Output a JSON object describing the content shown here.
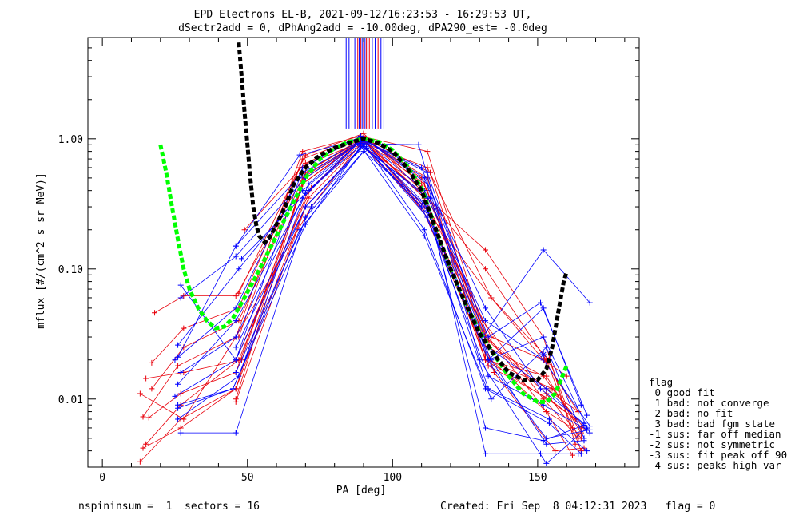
{
  "chart_data": {
    "type": "line",
    "title_line1": "EPD Electrons EL-B, 2021-09-12/16:23:53 - 16:29:53 UT,",
    "title_line2": "dSectr2add = 0, dPhAng2add = -10.00deg, dPA290_est=  -0.0deg",
    "xlabel": "PA [deg]",
    "ylabel": "mflux [#/(cm^2 s sr MeV)]",
    "xlim": [
      -5,
      185
    ],
    "ylim": [
      0.003,
      6.0
    ],
    "yscale": "log",
    "x_ticks": [
      0,
      50,
      100,
      150
    ],
    "x_tick_labels": [
      "0",
      "50",
      "100",
      "150"
    ],
    "y_ticks": [
      0.01,
      0.1,
      1.0
    ],
    "y_tick_labels": [
      "0.01",
      "0.10",
      "1.00"
    ],
    "series_colors": {
      "red": "#e8000b",
      "blue": "#0000ff",
      "fit_black": "#000000",
      "fit_green": "#00ff00"
    },
    "black_fit": {
      "x": [
        47.0,
        48.0,
        49.0,
        50.0,
        51.0,
        52.0,
        53.0,
        54.0,
        56.0,
        58.0,
        60.0,
        63.0,
        66.0,
        70.0,
        75.0,
        80.0,
        85.0,
        90.0,
        95.0,
        100.0,
        105.0,
        110.0,
        115.0,
        120.0,
        125.0,
        130.0,
        135.0,
        140.0,
        145.0,
        150.0,
        153.0,
        155.0,
        157.0,
        159.0,
        160.0
      ],
      "y": [
        5.5,
        3.0,
        1.6,
        0.9,
        0.5,
        0.3,
        0.22,
        0.18,
        0.16,
        0.18,
        0.22,
        0.3,
        0.45,
        0.6,
        0.75,
        0.85,
        0.93,
        1.0,
        0.93,
        0.8,
        0.6,
        0.4,
        0.2,
        0.1,
        0.055,
        0.032,
        0.022,
        0.016,
        0.014,
        0.014,
        0.017,
        0.025,
        0.045,
        0.08,
        0.095
      ]
    },
    "green_fit": {
      "x": [
        20.0,
        22.0,
        24.0,
        26.0,
        28.0,
        30.0,
        33.0,
        36.0,
        39.0,
        42.0,
        45.0,
        48.0,
        52.0,
        56.0,
        60.0,
        65.0,
        70.0,
        75.0,
        80.0,
        85.0,
        90.0,
        95.0,
        100.0,
        105.0,
        110.0,
        115.0,
        120.0,
        125.0,
        130.0,
        135.0,
        140.0,
        145.0,
        150.0,
        153.0,
        156.0,
        158.0,
        160.0
      ],
      "y": [
        0.9,
        0.55,
        0.3,
        0.17,
        0.1,
        0.07,
        0.05,
        0.04,
        0.035,
        0.036,
        0.042,
        0.055,
        0.08,
        0.12,
        0.18,
        0.3,
        0.5,
        0.7,
        0.85,
        0.95,
        1.0,
        0.95,
        0.82,
        0.62,
        0.42,
        0.2,
        0.1,
        0.055,
        0.033,
        0.022,
        0.015,
        0.011,
        0.0095,
        0.0095,
        0.011,
        0.014,
        0.018
      ]
    },
    "peak_vertical_lines": {
      "x": [
        84,
        85,
        86,
        87,
        88,
        88.5,
        89,
        89.5,
        90,
        90.5,
        91,
        91.5,
        92,
        93,
        94,
        95,
        96,
        97
      ],
      "colors": [
        "blue",
        "blue",
        "red",
        "blue",
        "red",
        "blue",
        "red",
        "blue",
        "red",
        "blue",
        "red",
        "blue",
        "red",
        "blue",
        "blue",
        "red",
        "blue",
        "blue"
      ],
      "y_from": 1.2
    },
    "traces": [
      {
        "color": "red",
        "x": [
          13,
          28,
          46,
          69,
          89,
          112,
          132,
          153,
          164
        ],
        "y": [
          0.011,
          0.007,
          0.03,
          0.8,
          1.05,
          0.8,
          0.03,
          0.012,
          0.008
        ]
      },
      {
        "color": "red",
        "x": [
          14,
          27,
          46,
          70,
          89,
          111,
          133,
          152,
          165
        ],
        "y": [
          0.0042,
          0.006,
          0.012,
          0.55,
          1.0,
          0.45,
          0.025,
          0.015,
          0.006
        ]
      },
      {
        "color": "red",
        "x": [
          15,
          27,
          47,
          71,
          90,
          111,
          132,
          154,
          163
        ],
        "y": [
          0.0045,
          0.009,
          0.02,
          0.4,
          0.97,
          0.35,
          0.02,
          0.0098,
          0.007
        ]
      },
      {
        "color": "red",
        "x": [
          16,
          27,
          46,
          70,
          90,
          110,
          133,
          153,
          165
        ],
        "y": [
          0.0072,
          0.011,
          0.016,
          0.5,
          1.0,
          0.5,
          0.028,
          0.011,
          0.005
        ]
      },
      {
        "color": "red",
        "x": [
          17,
          28,
          47,
          68,
          89,
          112,
          134,
          152,
          160
        ],
        "y": [
          0.019,
          0.035,
          0.05,
          0.6,
          0.95,
          0.6,
          0.06,
          0.02,
          0.015
        ]
      },
      {
        "color": "red",
        "x": [
          18,
          28,
          46,
          69,
          90,
          110,
          133,
          155,
          166
        ],
        "y": [
          0.046,
          0.062,
          0.062,
          0.5,
          1.0,
          0.3,
          0.02,
          0.012,
          0.006
        ]
      },
      {
        "color": "red",
        "x": [
          13,
          27,
          46,
          71,
          89,
          112,
          132,
          153,
          162
        ],
        "y": [
          0.0033,
          0.007,
          0.012,
          0.35,
          0.9,
          0.4,
          0.022,
          0.008,
          0.006
        ]
      },
      {
        "color": "red",
        "x": [
          15,
          28,
          48,
          69,
          90,
          111,
          134,
          152,
          164
        ],
        "y": [
          0.0144,
          0.016,
          0.02,
          0.45,
          1.0,
          0.35,
          0.03,
          0.02,
          0.008
        ]
      },
      {
        "color": "red",
        "x": [
          14,
          26,
          46,
          72,
          89,
          113,
          133,
          154,
          163
        ],
        "y": [
          0.0073,
          0.018,
          0.03,
          0.3,
          0.92,
          0.25,
          0.018,
          0.01,
          0.007
        ]
      },
      {
        "color": "red",
        "x": [
          17,
          28,
          47,
          70,
          90,
          112,
          132,
          153,
          165
        ],
        "y": [
          0.012,
          0.025,
          0.04,
          0.55,
          1.0,
          0.5,
          0.02,
          0.015,
          0.0055
        ]
      },
      {
        "color": "red",
        "x": [
          47,
          70,
          90,
          110,
          132,
          153,
          165
        ],
        "y": [
          0.065,
          0.75,
          1.1,
          0.4,
          0.1,
          0.02,
          0.004
        ]
      },
      {
        "color": "red",
        "x": [
          49,
          70,
          89,
          112,
          132,
          152,
          163
        ],
        "y": [
          0.2,
          0.65,
          1.0,
          0.35,
          0.14,
          0.03,
          0.0045
        ]
      },
      {
        "color": "red",
        "x": [
          46,
          69,
          90,
          111,
          134,
          154,
          164
        ],
        "y": [
          0.01,
          0.45,
          0.98,
          0.3,
          0.06,
          0.02,
          0.005
        ]
      },
      {
        "color": "red",
        "x": [
          46,
          70,
          91,
          112,
          133,
          153,
          162
        ],
        "y": [
          0.0095,
          0.3,
          0.95,
          0.25,
          0.03,
          0.008,
          0.0037
        ]
      },
      {
        "color": "red",
        "x": [
          46,
          72,
          90,
          113,
          135,
          156,
          166
        ],
        "y": [
          0.02,
          0.42,
          1.02,
          0.55,
          0.016,
          0.004,
          0.0042
        ]
      },
      {
        "color": "red",
        "x": [
          47,
          69,
          90,
          110,
          131,
          152,
          164
        ],
        "y": [
          0.03,
          0.7,
          1.05,
          0.45,
          0.04,
          0.01,
          0.005
        ]
      },
      {
        "color": "blue",
        "x": [
          26,
          46,
          68,
          89,
          112,
          133,
          153,
          167
        ],
        "y": [
          0.021,
          0.15,
          0.75,
          1.0,
          0.55,
          0.025,
          0.012,
          0.006
        ]
      },
      {
        "color": "blue",
        "x": [
          27,
          46,
          70,
          90,
          111,
          132,
          152,
          168
        ],
        "y": [
          0.06,
          0.125,
          0.5,
          0.98,
          0.4,
          0.04,
          0.02,
          0.0062
        ]
      },
      {
        "color": "blue",
        "x": [
          26,
          47,
          69,
          89,
          110,
          134,
          153,
          166
        ],
        "y": [
          0.026,
          0.1,
          0.4,
          0.95,
          0.3,
          0.02,
          0.0045,
          0.0048
        ]
      },
      {
        "color": "blue",
        "x": [
          25,
          46,
          70,
          90,
          112,
          133,
          152,
          167
        ],
        "y": [
          0.0105,
          0.02,
          0.3,
          0.9,
          0.25,
          0.015,
          0.009,
          0.0058
        ]
      },
      {
        "color": "blue",
        "x": [
          26,
          45,
          68,
          91,
          111,
          132,
          154,
          165
        ],
        "y": [
          0.0085,
          0.012,
          0.2,
          0.85,
          0.2,
          0.012,
          0.0065,
          0.0038
        ]
      },
      {
        "color": "blue",
        "x": [
          27,
          46,
          69,
          88,
          113,
          134,
          153,
          168
        ],
        "y": [
          0.016,
          0.03,
          0.35,
          0.92,
          0.35,
          0.018,
          0.005,
          0.0058
        ]
      },
      {
        "color": "blue",
        "x": [
          27,
          46,
          70,
          90,
          112,
          132,
          152,
          166
        ],
        "y": [
          0.0055,
          0.0055,
          0.25,
          0.8,
          0.3,
          0.006,
          0.0048,
          0.0063
        ]
      },
      {
        "color": "blue",
        "x": [
          26,
          47,
          71,
          89,
          110,
          133,
          151,
          167
        ],
        "y": [
          0.007,
          0.015,
          0.45,
          1.0,
          0.6,
          0.03,
          0.055,
          0.0075
        ]
      },
      {
        "color": "blue",
        "x": [
          46,
          69,
          90,
          111,
          131,
          152,
          168
        ],
        "y": [
          0.15,
          0.55,
          1.0,
          0.5,
          0.03,
          0.14,
          0.055
        ]
      },
      {
        "color": "blue",
        "x": [
          48,
          71,
          88,
          109,
          130,
          153,
          167
        ],
        "y": [
          0.12,
          0.4,
          0.92,
          0.9,
          0.02,
          0.0032,
          0.006
        ]
      },
      {
        "color": "blue",
        "x": [
          46,
          70,
          90,
          112,
          132,
          151,
          164
        ],
        "y": [
          0.025,
          0.3,
          0.87,
          0.35,
          0.0038,
          0.0038,
          0.0038
        ]
      },
      {
        "color": "blue",
        "x": [
          27,
          46,
          68,
          90,
          112,
          133,
          152,
          165
        ],
        "y": [
          0.075,
          0.02,
          0.5,
          0.97,
          0.28,
          0.02,
          0.05,
          0.009
        ]
      },
      {
        "color": "blue",
        "x": [
          26,
          45,
          70,
          89,
          111,
          134,
          153,
          166
        ],
        "y": [
          0.009,
          0.012,
          0.22,
          0.88,
          0.18,
          0.01,
          0.025,
          0.005
        ]
      },
      {
        "color": "blue",
        "x": [
          46,
          72,
          90,
          113,
          133,
          154,
          167
        ],
        "y": [
          0.016,
          0.3,
          0.9,
          0.25,
          0.012,
          0.007,
          0.004
        ]
      },
      {
        "color": "blue",
        "x": [
          25,
          46,
          69,
          89,
          112,
          132,
          151,
          166
        ],
        "y": [
          0.02,
          0.05,
          0.6,
          1.05,
          0.45,
          0.05,
          0.012,
          0.0065
        ]
      },
      {
        "color": "blue",
        "x": [
          26,
          46,
          70,
          90,
          111,
          133,
          152,
          168
        ],
        "y": [
          0.013,
          0.04,
          0.38,
          0.93,
          0.32,
          0.02,
          0.03,
          0.0055
        ]
      }
    ],
    "outlier_markers": [
      {
        "color": "red",
        "x": 153,
        "y": 0.02
      },
      {
        "color": "blue",
        "x": 152,
        "y": 0.022
      }
    ]
  },
  "legend": {
    "title": "flag",
    "entries": [
      " 0 good fit",
      " 1 bad: not converge",
      " 2 bad: no fit",
      " 3 bad: bad fgm state",
      "-1 sus: far off median",
      "-2 sus: not symmetric",
      "-3 sus: fit peak off 90",
      "-4 sus: peaks high var"
    ]
  },
  "footer": {
    "left": "nspininsum =  1  sectors = 16",
    "right": "Created: Fri Sep  8 04:12:31 2023   flag = 0"
  }
}
